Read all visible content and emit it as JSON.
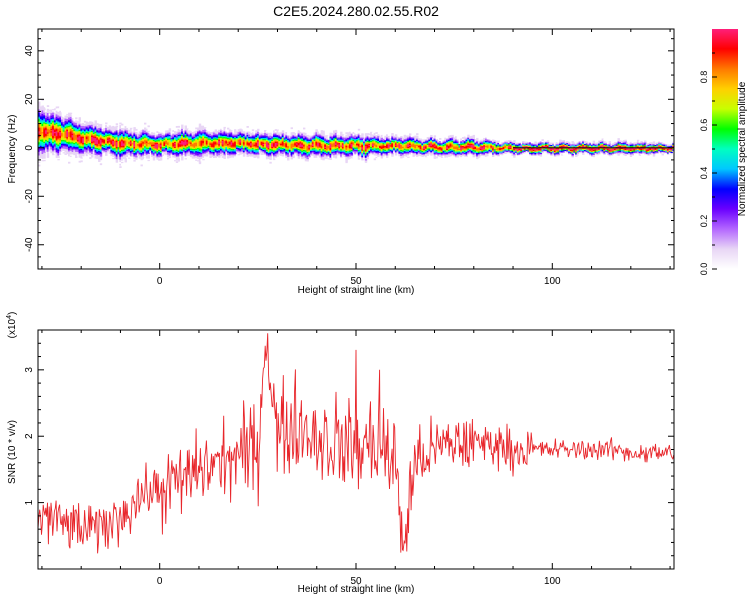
{
  "title": "C2E5.2024.280.02.55.R02",
  "chart_data": [
    {
      "type": "heatmap",
      "name": "spectrogram",
      "xlabel": "Height of straight line (km)",
      "ylabel": "Frequency (Hz)",
      "xlim": [
        -31,
        131
      ],
      "ylim": [
        -50,
        49
      ],
      "x_ticks": [
        0,
        50,
        100
      ],
      "x_tick_labels": [
        "0",
        "50",
        "100"
      ],
      "y_ticks": [
        40,
        20,
        0,
        -20,
        -40
      ],
      "y_tick_labels": [
        "40",
        "20",
        "0",
        "-20",
        "-40"
      ],
      "colorbar": {
        "label": "Normalized spectral amplitude",
        "range": [
          0,
          1
        ],
        "ticks": [
          0.0,
          0.2,
          0.4,
          0.6,
          0.8
        ],
        "tick_labels": [
          "0.0",
          "0.2",
          "0.4",
          "0.6",
          "0.8"
        ],
        "colors": [
          "#ffffff",
          "#e8d6f5",
          "#b366ff",
          "#6a00ff",
          "#0000ff",
          "#00c8ff",
          "#00ffc0",
          "#00ff00",
          "#c8ff00",
          "#ffd000",
          "#ff7a00",
          "#ff0000",
          "#ff1f7a"
        ]
      },
      "ridge": {
        "description_x": [
          -30,
          -25,
          -20,
          -15,
          -10,
          0,
          10,
          20,
          30,
          40,
          50,
          60,
          70,
          80,
          90,
          100,
          110,
          120,
          130
        ],
        "center_frequency_hz": [
          7,
          6,
          4,
          3,
          2,
          1.5,
          2,
          2,
          1.5,
          1,
          1,
          1,
          0.5,
          0.5,
          0,
          0,
          0,
          0,
          0
        ],
        "halfwidth_hz": [
          8,
          7,
          6,
          5,
          5,
          4,
          5,
          4,
          4,
          4,
          4,
          3,
          3,
          3,
          2,
          2,
          2,
          2,
          1.5
        ]
      }
    },
    {
      "type": "line",
      "name": "snr",
      "xlabel": "Height of straight line (km)",
      "ylabel": "SNR (10 * v/v)",
      "y_multiplier_label": "(x10",
      "y_multiplier_exp": "4",
      "y_multiplier_close": ")",
      "xlim": [
        -31,
        131
      ],
      "ylim": [
        0,
        3.6
      ],
      "x_ticks": [
        0,
        50,
        100
      ],
      "x_tick_labels": [
        "0",
        "50",
        "100"
      ],
      "y_ticks": [
        1,
        2,
        3
      ],
      "y_tick_labels": [
        "1",
        "2",
        "3"
      ],
      "color": "#e8262b",
      "series": [
        {
          "x": [
            -30,
            -25,
            -20,
            -15,
            -10,
            -5,
            0,
            5,
            10,
            15,
            20,
            25,
            27,
            30,
            35,
            40,
            45,
            50,
            55,
            60,
            62,
            65,
            70,
            75,
            80,
            85,
            90,
            95,
            100,
            105,
            110,
            115,
            120,
            125,
            130
          ],
          "y": [
            0.8,
            0.7,
            0.6,
            0.6,
            0.8,
            1.1,
            1.2,
            1.3,
            1.5,
            1.6,
            1.7,
            1.8,
            3.5,
            2.0,
            2.2,
            2.0,
            1.9,
            1.8,
            1.9,
            1.6,
            0.3,
            1.6,
            1.8,
            1.9,
            1.9,
            1.9,
            1.8,
            1.8,
            1.8,
            1.8,
            1.8,
            1.8,
            1.75,
            1.75,
            1.75
          ]
        }
      ],
      "peak_annotations": [
        {
          "x": 27.5,
          "y": 3.55
        },
        {
          "x": 50,
          "y": 3.3
        },
        {
          "x": 56,
          "y": 3.0
        },
        {
          "x": 62,
          "y": 0.28
        }
      ]
    }
  ]
}
